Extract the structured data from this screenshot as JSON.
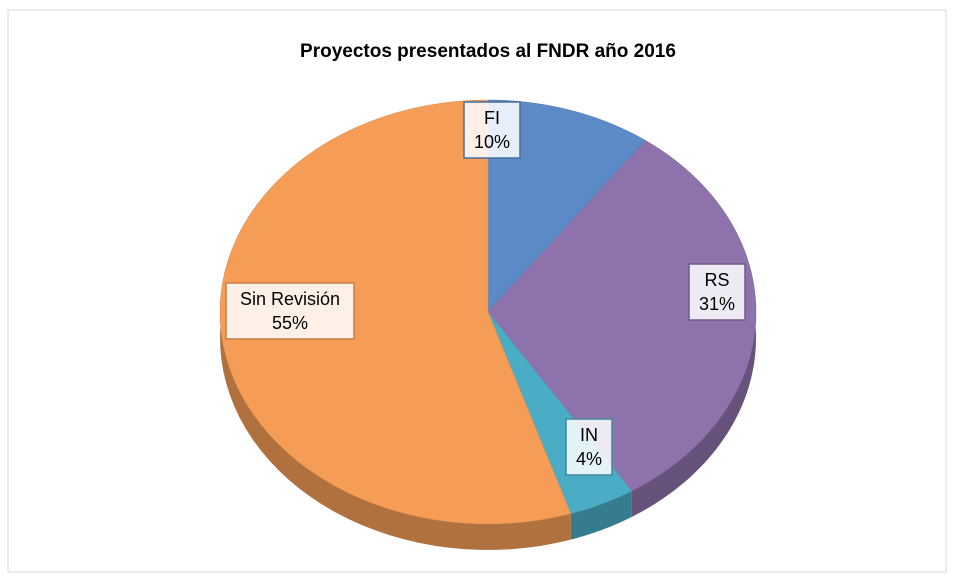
{
  "chart_data": {
    "type": "pie",
    "title": "Proyectos presentados al FNDR año 2016",
    "categories": [
      "FI",
      "RS",
      "IN",
      "Sin Revisión"
    ],
    "values": [
      10,
      31,
      4,
      55
    ],
    "value_labels": [
      "10%",
      "31%",
      "4%",
      "55%"
    ],
    "colors": [
      "#5b8ac6",
      "#8e72ab",
      "#4bacc6",
      "#f59d56"
    ]
  }
}
